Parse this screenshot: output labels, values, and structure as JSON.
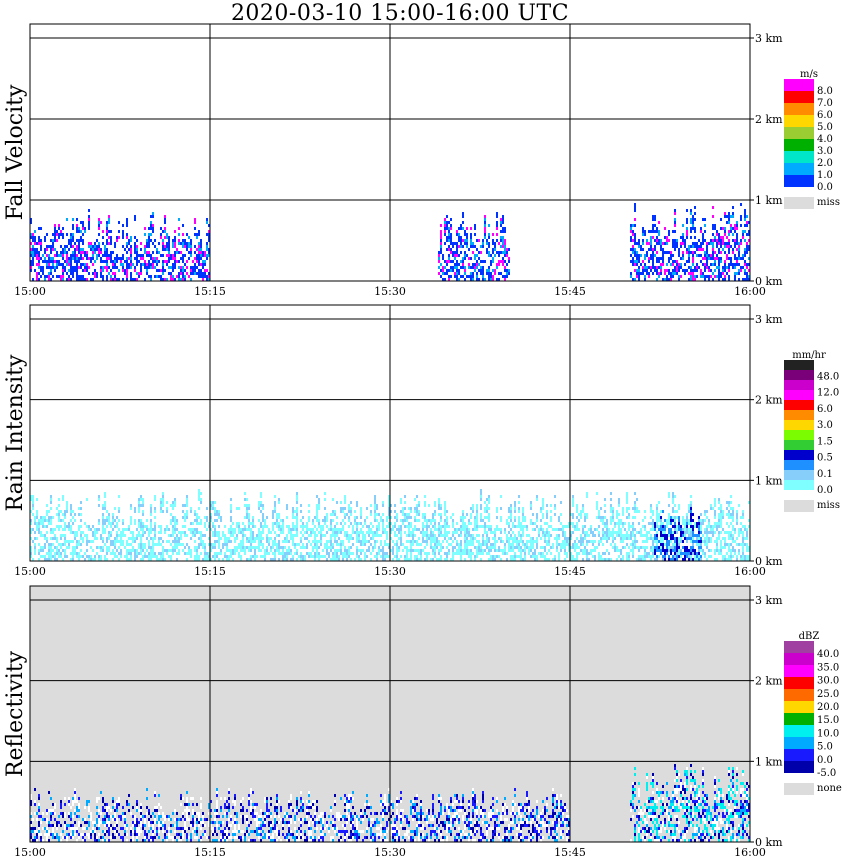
{
  "title": "2020-03-10   15:00-16:00 UTC",
  "colors": {
    "missing": "#dcdcdc",
    "grid": "#000000"
  },
  "chart_data": [
    {
      "type": "heatmap",
      "ylabel": "Fall Velocity",
      "x_ticks": [
        "15:00",
        "15:15",
        "15:30",
        "15:45",
        "16:00"
      ],
      "y_ticks": [
        "0 km",
        "1 km",
        "2 km",
        "3 km"
      ],
      "xlim": [
        "15:00",
        "16:00"
      ],
      "ylim_km": [
        0,
        3.0
      ],
      "background": "white",
      "colorbar": {
        "unit": "m/s",
        "labels": [
          "8.0",
          "7.0",
          "6.0",
          "5.0",
          "4.0",
          "3.0",
          "2.0",
          "1.0",
          "0.0"
        ],
        "colors": [
          "#ff00ff",
          "#ff0000",
          "#ff8c00",
          "#ffd700",
          "#9acd32",
          "#00b000",
          "#00e6c8",
          "#00aaff",
          "#0033ff"
        ],
        "extra": {
          "label": "miss",
          "color": "#dcdcdc"
        }
      },
      "echo_regions": [
        {
          "t_start": "15:00",
          "t_end": "15:15",
          "top_km": 0.9,
          "dominant": "0.0-1.0 m/s"
        },
        {
          "t_start": "15:34",
          "t_end": "15:40",
          "top_km": 0.9,
          "dominant": "0.0-1.0 m/s"
        },
        {
          "t_start": "15:50",
          "t_end": "16:00",
          "top_km": 1.0,
          "dominant": "0.0-2.0 m/s"
        }
      ]
    },
    {
      "type": "heatmap",
      "ylabel": "Rain Intensity",
      "x_ticks": [
        "15:00",
        "15:15",
        "15:30",
        "15:45",
        "16:00"
      ],
      "y_ticks": [
        "0 km",
        "1 km",
        "2 km",
        "3 km"
      ],
      "xlim": [
        "15:00",
        "16:00"
      ],
      "ylim_km": [
        0,
        3.0
      ],
      "background": "white",
      "colorbar": {
        "unit": "mm/hr",
        "labels": [
          "48.0",
          "12.0",
          "6.0",
          "3.0",
          "1.5",
          "0.5",
          "0.1",
          "0.0"
        ],
        "colors": [
          "#222222",
          "#7a007a",
          "#cc00cc",
          "#ff00ff",
          "#ff0000",
          "#ff8c00",
          "#ffd700",
          "#7cfc00",
          "#32cd32",
          "#0000cd",
          "#1e90ff",
          "#87cefa",
          "#7fffff"
        ],
        "extra": {
          "label": "miss",
          "color": "#dcdcdc"
        }
      },
      "echo_regions": [
        {
          "t_start": "15:00",
          "t_end": "16:00",
          "top_km": 0.9,
          "dominant": "0.0-0.1 mm/hr"
        },
        {
          "t_start": "15:52",
          "t_end": "15:56",
          "top_km": 0.7,
          "dominant": "0.1-0.5 mm/hr"
        }
      ]
    },
    {
      "type": "heatmap",
      "ylabel": "Reflectivity",
      "x_ticks": [
        "15:00",
        "15:15",
        "15:30",
        "15:45",
        "16:00"
      ],
      "y_ticks": [
        "0 km",
        "1 km",
        "2 km",
        "3 km"
      ],
      "xlim": [
        "15:00",
        "16:00"
      ],
      "ylim_km": [
        0,
        3.0
      ],
      "background": "none (grey)",
      "colorbar": {
        "unit": "dBZ",
        "labels": [
          "40.0",
          "35.0",
          "30.0",
          "25.0",
          "20.0",
          "15.0",
          "10.0",
          "5.0",
          "0.0",
          "-5.0"
        ],
        "colors": [
          "#a040a0",
          "#cc00cc",
          "#ff00ff",
          "#ff0000",
          "#ff6a00",
          "#ffd700",
          "#00b000",
          "#00f0f0",
          "#00aaff",
          "#1a1aff",
          "#0000aa"
        ],
        "extra": {
          "label": "none",
          "color": "#dcdcdc"
        }
      },
      "echo_regions": [
        {
          "t_start": "15:00",
          "t_end": "15:45",
          "top_km": 0.7,
          "dominant": "-5.0-0.0 dBZ"
        },
        {
          "t_start": "15:50",
          "t_end": "16:00",
          "top_km": 1.0,
          "dominant": "0.0-10.0 dBZ"
        }
      ]
    }
  ]
}
